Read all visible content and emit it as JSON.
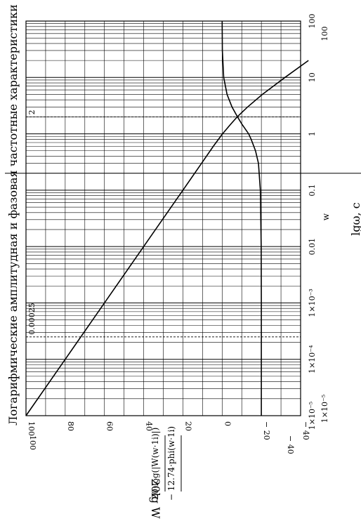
{
  "chart_data": {
    "type": "line",
    "title": "Логарифмические амплитудная и фазовая частотные характеристики",
    "xlabel": "w",
    "xlabel2": "lgω, c",
    "ylabel": "20lg W",
    "y_expr_1": "20·log(|W(w·1i)|)",
    "y_expr_2": "− 12.74·phi(w·1i)",
    "x_scale": "log",
    "xlim": [
      1e-05,
      100
    ],
    "ylim": [
      -40,
      100
    ],
    "grid": true,
    "x_ticks": [
      {
        "value": 1e-05,
        "label": "1×10⁻⁵"
      },
      {
        "value": 0.0001,
        "label": "1×10⁻⁴"
      },
      {
        "value": 0.001,
        "label": "1×10⁻³"
      },
      {
        "value": 0.01,
        "label": "0.01"
      },
      {
        "value": 0.1,
        "label": "0.1"
      },
      {
        "value": 1,
        "label": "1"
      },
      {
        "value": 10,
        "label": "10"
      },
      {
        "value": 100,
        "label": "100"
      }
    ],
    "y_ticks": [
      {
        "value": 100,
        "label": "100"
      },
      {
        "value": 80,
        "label": "80"
      },
      {
        "value": 60,
        "label": "60"
      },
      {
        "value": 40,
        "label": "40"
      },
      {
        "value": 20,
        "label": "20"
      },
      {
        "value": 0,
        "label": "0"
      },
      {
        "value": -20,
        "label": "− 20"
      },
      {
        "value": -40,
        "label": "− 40"
      }
    ],
    "x_range_labels": {
      "min": "1×10⁻⁵",
      "max": "100"
    },
    "y_range_labels": {
      "max": "100",
      "min": "− 40"
    },
    "markers": [
      {
        "x": 0.00025,
        "label": "0.00025"
      },
      {
        "x": 2,
        "label": "2"
      }
    ],
    "series": [
      {
        "key": "amplitude",
        "x": [
          1e-05,
          0.0001,
          0.001,
          0.01,
          0.1,
          0.3,
          0.6,
          1,
          1.5,
          2,
          3,
          5,
          10,
          20
        ],
        "y": [
          100,
          80,
          60,
          40,
          20,
          10.5,
          4.5,
          -0.2,
          -4.5,
          -7.7,
          -13,
          -20.5,
          -32,
          -44
        ]
      },
      {
        "key": "phase",
        "x": [
          1e-05,
          0.0001,
          0.001,
          0.01,
          0.1,
          0.3,
          0.5,
          0.8,
          1,
          1.5,
          2,
          3,
          5,
          10,
          30,
          100
        ],
        "y": [
          -20,
          -20,
          -20,
          -19.9,
          -19.5,
          -18.5,
          -17,
          -14.8,
          -13.5,
          -10,
          -7.8,
          -5,
          -2.5,
          -0.8,
          -0.1,
          0
        ]
      }
    ]
  }
}
